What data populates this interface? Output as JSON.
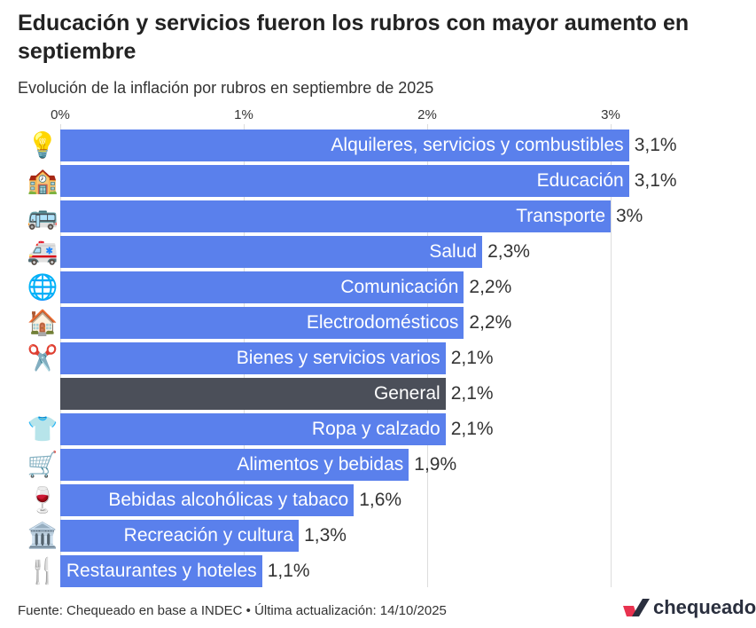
{
  "title": "Educación y servicios fueron los rubros con mayor aumento en septiembre",
  "subtitle": "Evolución de la inflación por rubros en septiembre de 2025",
  "footer": "Fuente: Chequeado en base a INDEC • Última actualización: 14/10/2025",
  "logo_text": "chequeado",
  "colors": {
    "bar": "#5a80ec",
    "highlight": "#4b4f59"
  },
  "chart_data": {
    "type": "bar",
    "orientation": "horizontal",
    "xlim": [
      0,
      3.1
    ],
    "ticks": [
      {
        "value": 0,
        "label": "0%"
      },
      {
        "value": 1,
        "label": "1%"
      },
      {
        "value": 2,
        "label": "2%"
      },
      {
        "value": 3,
        "label": "3%"
      }
    ],
    "grid": true,
    "categories": [
      "Alquileres, servicios y combustibles",
      "Educación",
      "Transporte",
      "Salud",
      "Comunicación",
      "Electrodomésticos",
      "Bienes y servicios varios",
      "General",
      "Ropa y calzado",
      "Alimentos y bebidas",
      "Bebidas alcohólicas y tabaco",
      "Recreación y cultura",
      "Restaurantes y hoteles"
    ],
    "values": [
      3.1,
      3.1,
      3.0,
      2.3,
      2.2,
      2.2,
      2.1,
      2.1,
      2.1,
      1.9,
      1.6,
      1.3,
      1.1
    ],
    "value_labels": [
      "3,1%",
      "3,1%",
      "3%",
      "2,3%",
      "2,2%",
      "2,2%",
      "2,1%",
      "2,1%",
      "2,1%",
      "1,9%",
      "1,6%",
      "1,3%",
      "1,1%"
    ],
    "icons": [
      "light-bulb-icon",
      "school-icon",
      "bus-icon",
      "ambulance-icon",
      "globe-icon",
      "house-icon",
      "scissors-icon",
      "",
      "t-shirt-icon",
      "shopping-cart-icon",
      "wine-glass-icon",
      "museum-icon",
      "fork-knife-icon"
    ],
    "highlight": "General"
  }
}
